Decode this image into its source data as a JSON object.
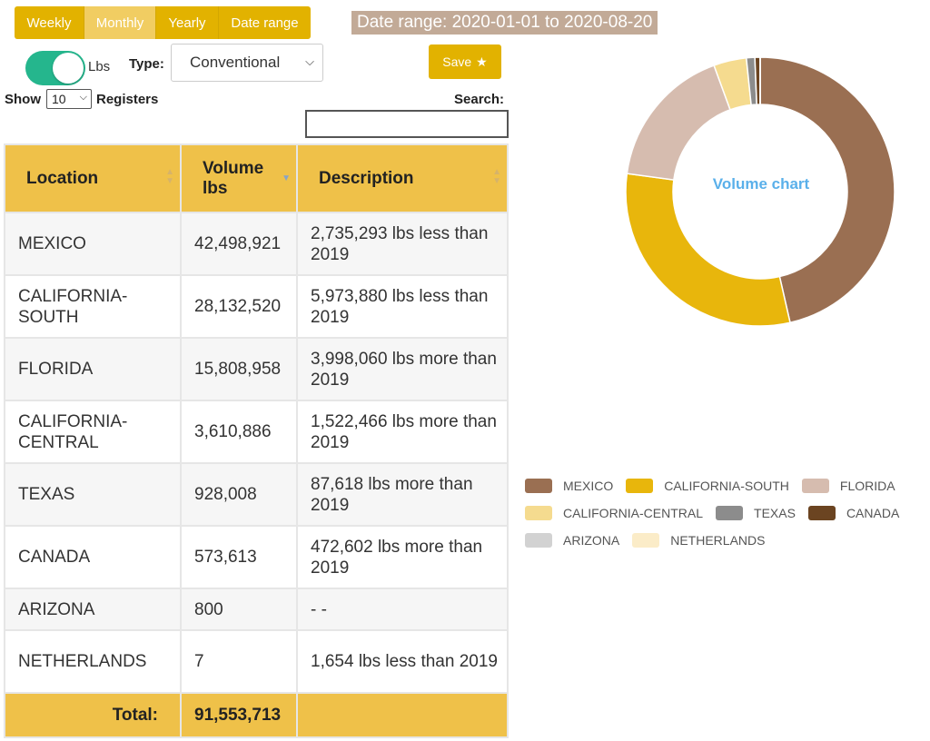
{
  "periods": [
    "Weekly",
    "Monthly",
    "Yearly",
    "Date range"
  ],
  "active_period": "Monthly",
  "date_range_label": "Date range: 2020-01-01 to 2020-08-20",
  "unit_toggle": {
    "label": "Lbs",
    "on": true,
    "color": "#25b68d"
  },
  "type_filter": {
    "label": "Type:",
    "value": "Conventional"
  },
  "save_button": {
    "label": "Save",
    "icon": "star-icon"
  },
  "table_controls": {
    "show_label": "Show",
    "length_value": "10",
    "registers_label": "Registers",
    "search_label": "Search:",
    "search_value": ""
  },
  "table": {
    "headers": [
      {
        "label": "Location",
        "sort": "both"
      },
      {
        "label": "Volume lbs",
        "sort": "desc"
      },
      {
        "label": "Description",
        "sort": "both"
      }
    ],
    "rows": [
      {
        "location": "MEXICO",
        "volume": "42,498,921",
        "description": "2,735,293 lbs less than 2019"
      },
      {
        "location": "CALIFORNIA-SOUTH",
        "volume": "28,132,520",
        "description": "5,973,880 lbs less than 2019"
      },
      {
        "location": "FLORIDA",
        "volume": "15,808,958",
        "description": "3,998,060 lbs more than 2019"
      },
      {
        "location": "CALIFORNIA-CENTRAL",
        "volume": "3,610,886",
        "description": "1,522,466 lbs more than 2019"
      },
      {
        "location": "TEXAS",
        "volume": "928,008",
        "description": "87,618 lbs more than 2019"
      },
      {
        "location": "CANADA",
        "volume": "573,613",
        "description": "472,602 lbs more than 2019"
      },
      {
        "location": "ARIZONA",
        "volume": "800",
        "description": "- -"
      },
      {
        "location": "NETHERLANDS",
        "volume": "7",
        "description": "1,654 lbs less than 2019"
      }
    ],
    "footer": {
      "label": "Total:",
      "value": "91,553,713"
    }
  },
  "chart_title": "Volume chart",
  "chart_data": {
    "type": "pie",
    "title": "Volume chart",
    "categories": [
      "MEXICO",
      "CALIFORNIA-SOUTH",
      "FLORIDA",
      "CALIFORNIA-CENTRAL",
      "TEXAS",
      "CANADA",
      "ARIZONA",
      "NETHERLANDS"
    ],
    "values": [
      42498921,
      28132520,
      15808958,
      3610886,
      928008,
      573613,
      800,
      7
    ],
    "colors": [
      "#9a6f52",
      "#e8b60c",
      "#d6bcaf",
      "#f5db8f",
      "#8c8c8c",
      "#6b4421",
      "#d2d2d2",
      "#fbecc8"
    ],
    "legend": "bottom"
  },
  "colors": {
    "accent": "#e2b200",
    "header_bg": "#efc149",
    "range_label_bg": "#c2aa97",
    "chart_title": "#5ab0ea"
  }
}
